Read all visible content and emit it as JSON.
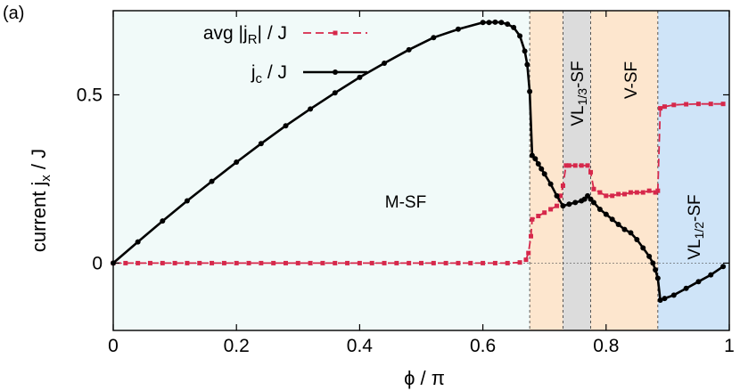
{
  "panel_label": "(a)",
  "chart_data": {
    "type": "line",
    "xlabel": "ϕ / π",
    "ylabel": "current  jx / J",
    "ylabel_main": "current  j",
    "ylabel_sub": "x",
    "ylabel_tail": " / J",
    "xlim": [
      0,
      1
    ],
    "ylim": [
      -0.2,
      0.75
    ],
    "x_ticks": [
      0,
      0.2,
      0.4,
      0.6,
      0.8,
      1
    ],
    "x_tick_labels": [
      "0",
      "0.2",
      "0.4",
      "0.6",
      "0.8",
      "1"
    ],
    "y_ticks": [
      0,
      0.5
    ],
    "y_tick_labels": [
      "0",
      "0.5"
    ],
    "grid": false,
    "legend_position": "top-right",
    "colors": {
      "jc": "#000000",
      "jR": "#d6284b",
      "msf_bg": "#f1faf9",
      "vsf_bg": "#fde6ce",
      "vl13_bg": "#dcdcdc",
      "vl12_bg": "#cfe4f8"
    },
    "regions": [
      {
        "label": "M-SF",
        "from": 0,
        "to": 0.676,
        "color_key": "msf_bg"
      },
      {
        "label": "",
        "from": 0.676,
        "to": 0.73,
        "color_key": "vsf_bg"
      },
      {
        "label_main": "VL",
        "label_sub": "1/3",
        "label_tail": "-SF",
        "from": 0.73,
        "to": 0.775,
        "color_key": "vl13_bg"
      },
      {
        "label": "V-SF",
        "from": 0.775,
        "to": 0.884,
        "color_key": "vsf_bg"
      },
      {
        "label_main": "VL",
        "label_sub": "1/2",
        "label_tail": "-SF",
        "from": 0.884,
        "to": 1.0,
        "color_key": "vl12_bg"
      }
    ],
    "region_boundaries": [
      0.676,
      0.73,
      0.775,
      0.884
    ],
    "series": [
      {
        "name": "j_c / J",
        "legend_main": "j",
        "legend_sub": "c",
        "legend_tail": " / J",
        "style": "solid-circle",
        "x": [
          0,
          0.04,
          0.08,
          0.12,
          0.16,
          0.2,
          0.24,
          0.28,
          0.32,
          0.36,
          0.4,
          0.44,
          0.48,
          0.52,
          0.56,
          0.6,
          0.61,
          0.62,
          0.63,
          0.64,
          0.65,
          0.66,
          0.668,
          0.672,
          0.676,
          0.68,
          0.685,
          0.69,
          0.695,
          0.7,
          0.71,
          0.72,
          0.73,
          0.74,
          0.75,
          0.76,
          0.765,
          0.77,
          0.775,
          0.78,
          0.79,
          0.8,
          0.81,
          0.82,
          0.83,
          0.84,
          0.85,
          0.86,
          0.87,
          0.876,
          0.88,
          0.884,
          0.888,
          0.895,
          0.91,
          0.93,
          0.95,
          0.97,
          0.99
        ],
        "y": [
          0,
          0.063,
          0.125,
          0.185,
          0.243,
          0.3,
          0.355,
          0.408,
          0.458,
          0.506,
          0.552,
          0.594,
          0.634,
          0.67,
          0.695,
          0.715,
          0.715,
          0.716,
          0.715,
          0.71,
          0.7,
          0.675,
          0.63,
          0.59,
          0.51,
          0.32,
          0.31,
          0.295,
          0.28,
          0.265,
          0.235,
          0.2,
          0.17,
          0.175,
          0.18,
          0.185,
          0.19,
          0.2,
          0.19,
          0.18,
          0.16,
          0.145,
          0.13,
          0.115,
          0.1,
          0.09,
          0.07,
          0.045,
          0.02,
          0.0,
          -0.02,
          -0.045,
          -0.11,
          -0.105,
          -0.095,
          -0.075,
          -0.055,
          -0.035,
          -0.01
        ]
      },
      {
        "name": "avg |j_R| / J",
        "legend_main": "avg |j",
        "legend_sub": "R",
        "legend_tail": "| / J",
        "style": "dashed-square",
        "x": [
          0,
          0.02,
          0.04,
          0.06,
          0.08,
          0.1,
          0.12,
          0.14,
          0.16,
          0.18,
          0.2,
          0.22,
          0.24,
          0.26,
          0.28,
          0.3,
          0.32,
          0.34,
          0.36,
          0.38,
          0.4,
          0.42,
          0.44,
          0.46,
          0.48,
          0.5,
          0.52,
          0.54,
          0.56,
          0.58,
          0.6,
          0.62,
          0.64,
          0.66,
          0.67,
          0.674,
          0.678,
          0.68,
          0.69,
          0.7,
          0.71,
          0.72,
          0.726,
          0.73,
          0.735,
          0.74,
          0.75,
          0.76,
          0.77,
          0.775,
          0.78,
          0.79,
          0.8,
          0.81,
          0.82,
          0.83,
          0.84,
          0.85,
          0.86,
          0.87,
          0.88,
          0.884,
          0.888,
          0.895,
          0.91,
          0.93,
          0.95,
          0.97,
          0.99
        ],
        "y": [
          0,
          0,
          0,
          0,
          0,
          0,
          0,
          0,
          0,
          0,
          0,
          0,
          0,
          0,
          0,
          0,
          0,
          0,
          0,
          0,
          0,
          0,
          0,
          0,
          0,
          0,
          0,
          0,
          0,
          0,
          0,
          0,
          0,
          0.002,
          0.01,
          0.03,
          0.08,
          0.13,
          0.14,
          0.15,
          0.16,
          0.17,
          0.2,
          0.23,
          0.29,
          0.29,
          0.29,
          0.29,
          0.29,
          0.27,
          0.22,
          0.21,
          0.2,
          0.2,
          0.205,
          0.205,
          0.21,
          0.21,
          0.21,
          0.215,
          0.21,
          0.215,
          0.46,
          0.465,
          0.47,
          0.472,
          0.473,
          0.473,
          0.473
        ]
      }
    ]
  }
}
